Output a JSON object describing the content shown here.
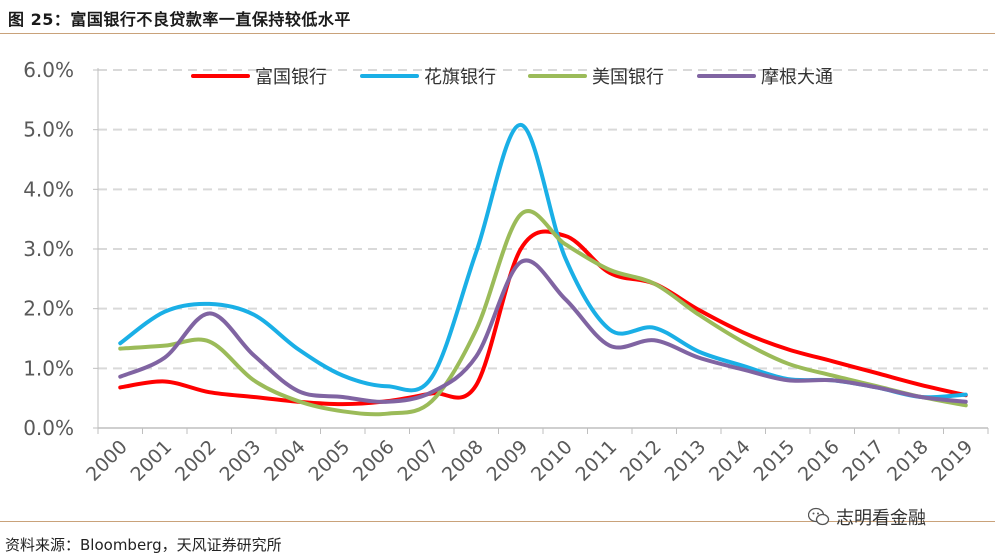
{
  "figure": {
    "title": "图 25：富国银行不良贷款率一直保持较低水平",
    "source": "资料来源：Bloomberg，天风证券研究所",
    "watermark": "志明看金融"
  },
  "chart_data": {
    "type": "line",
    "title": "",
    "xlabel": "",
    "ylabel": "",
    "x": [
      "2000",
      "2001",
      "2002",
      "2003",
      "2004",
      "2005",
      "2006",
      "2007",
      "2008",
      "2009",
      "2010",
      "2011",
      "2012",
      "2013",
      "2014",
      "2015",
      "2016",
      "2017",
      "2018",
      "2019"
    ],
    "y_ticks": [
      "0.0%",
      "1.0%",
      "2.0%",
      "3.0%",
      "4.0%",
      "5.0%",
      "6.0%"
    ],
    "ylim": [
      0,
      6
    ],
    "grid": "horizontal dashed",
    "legend_position": "top",
    "series": [
      {
        "name": "富国银行",
        "color": "#ff0000",
        "values": [
          0.68,
          0.78,
          0.6,
          0.52,
          0.44,
          0.4,
          0.45,
          0.58,
          0.72,
          3.0,
          3.22,
          2.6,
          2.42,
          1.98,
          1.6,
          1.32,
          1.12,
          0.92,
          0.72,
          0.55
        ]
      },
      {
        "name": "花旗银行",
        "color": "#1aafe6",
        "values": [
          1.42,
          1.95,
          2.08,
          1.9,
          1.32,
          0.88,
          0.7,
          0.85,
          2.95,
          5.08,
          2.85,
          1.65,
          1.68,
          1.28,
          1.04,
          0.82,
          0.8,
          0.68,
          0.52,
          0.56
        ]
      },
      {
        "name": "美国银行",
        "color": "#9bbb59",
        "values": [
          1.33,
          1.38,
          1.45,
          0.8,
          0.45,
          0.28,
          0.24,
          0.45,
          1.65,
          3.58,
          3.08,
          2.65,
          2.42,
          1.9,
          1.44,
          1.08,
          0.88,
          0.7,
          0.52,
          0.38
        ]
      },
      {
        "name": "摩根大通",
        "color": "#8064a2",
        "values": [
          0.86,
          1.18,
          1.92,
          1.22,
          0.62,
          0.52,
          0.44,
          0.6,
          1.2,
          2.78,
          2.16,
          1.38,
          1.47,
          1.18,
          0.98,
          0.8,
          0.8,
          0.68,
          0.52,
          0.44
        ]
      }
    ]
  }
}
